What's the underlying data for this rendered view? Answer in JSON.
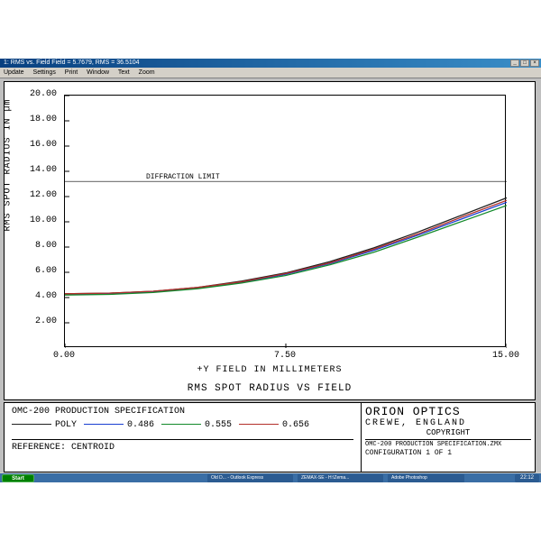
{
  "window": {
    "title": "1: RMS vs. Field Field = 5.7679, RMS = 36.5104",
    "menu": [
      "Update",
      "Settings",
      "Print",
      "Window",
      "Text",
      "Zoom"
    ]
  },
  "chart": {
    "type": "line",
    "ylabel": "RMS SPOT RADIUS IN µm",
    "xlabel": "+Y FIELD IN MILLIMETERS",
    "subtitle": "RMS SPOT RADIUS VS FIELD",
    "xlim": [
      0,
      15
    ],
    "ylim": [
      0,
      20
    ],
    "xticks": [
      0.0,
      7.5,
      15.0
    ],
    "yticks": [
      2.0,
      4.0,
      6.0,
      8.0,
      10.0,
      12.0,
      14.0,
      16.0,
      18.0,
      20.0
    ],
    "diffraction_limit": {
      "label": "DIFFRACTION LIMIT",
      "y": 13.2
    },
    "background_color": "#ffffff",
    "axis_color": "#000000",
    "series": [
      {
        "name": "POLY",
        "color": "#202020",
        "x": [
          0,
          1.5,
          3,
          4.5,
          6,
          7.5,
          9,
          10.5,
          12,
          13.5,
          15
        ],
        "y": [
          4.3,
          4.35,
          4.5,
          4.8,
          5.3,
          5.95,
          6.85,
          7.95,
          9.2,
          10.55,
          11.9
        ]
      },
      {
        "name": "0.486",
        "color": "#1a3fd1",
        "x": [
          0,
          1.5,
          3,
          4.5,
          6,
          7.5,
          9,
          10.5,
          12,
          13.5,
          15
        ],
        "y": [
          4.25,
          4.3,
          4.45,
          4.75,
          5.2,
          5.85,
          6.7,
          7.75,
          8.95,
          10.25,
          11.55
        ]
      },
      {
        "name": "0.555",
        "color": "#138a2a",
        "x": [
          0,
          1.5,
          3,
          4.5,
          6,
          7.5,
          9,
          10.5,
          12,
          13.5,
          15
        ],
        "y": [
          4.2,
          4.25,
          4.4,
          4.7,
          5.15,
          5.75,
          6.6,
          7.6,
          8.8,
          10.05,
          11.3
        ]
      },
      {
        "name": "0.656",
        "color": "#b3302a",
        "x": [
          0,
          1.5,
          3,
          4.5,
          6,
          7.5,
          9,
          10.5,
          12,
          13.5,
          15
        ],
        "y": [
          4.3,
          4.35,
          4.5,
          4.8,
          5.25,
          5.9,
          6.75,
          7.85,
          9.05,
          10.4,
          11.7
        ]
      }
    ]
  },
  "info": {
    "spec_line": "OMC-200 PRODUCTION SPECIFICATION",
    "reference": "REFERENCE: CENTROID",
    "company": "ORION OPTICS",
    "location": "CREWE, ENGLAND",
    "copyright": "COPYRIGHT",
    "filename": "OMC-200 PRODUCTION SPECIFICATION.ZMX",
    "config": "CONFIGURATION 1 OF 1"
  },
  "taskbar": {
    "start": "Start",
    "items": [
      "Old D... - Outlook Express",
      "ZEMAX-SE - H:\\Zema...",
      "Adobe Photoshop"
    ],
    "clock": "22:12"
  }
}
